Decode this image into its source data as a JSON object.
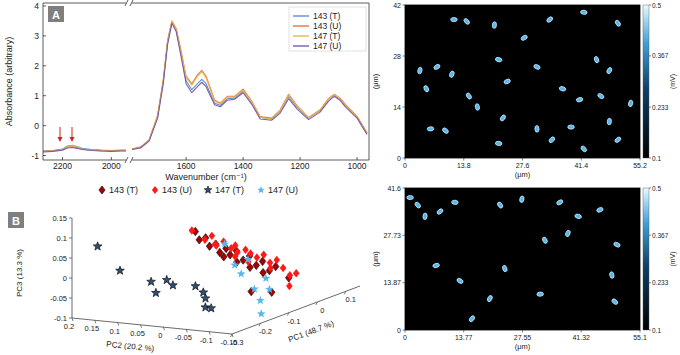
{
  "chart_data": [
    {
      "type": "line",
      "title": "A",
      "ylabel": "Absorbance (arbitrary)",
      "x": [
        2280,
        2240,
        2200,
        2180,
        2160,
        2140,
        2120,
        2080,
        2040,
        2000,
        1960,
        1940
      ],
      "series": [
        {
          "color": "#5b8fd6",
          "values": [
            -0.85,
            -0.83,
            -0.78,
            -0.68,
            -0.66,
            -0.7,
            -0.76,
            -0.8,
            -0.82,
            -0.83,
            -0.82,
            -0.82
          ]
        },
        {
          "color": "#e8743b",
          "values": [
            -0.86,
            -0.84,
            -0.8,
            -0.72,
            -0.7,
            -0.74,
            -0.79,
            -0.82,
            -0.84,
            -0.84,
            -0.83,
            -0.83
          ]
        },
        {
          "color": "#e6b84a",
          "values": [
            -0.87,
            -0.85,
            -0.8,
            -0.7,
            -0.67,
            -0.71,
            -0.78,
            -0.82,
            -0.84,
            -0.85,
            -0.84,
            -0.84
          ]
        },
        {
          "color": "#7b5ea7",
          "values": [
            -0.88,
            -0.86,
            -0.82,
            -0.75,
            -0.73,
            -0.76,
            -0.8,
            -0.83,
            -0.85,
            -0.86,
            -0.85,
            -0.85
          ]
        }
      ],
      "xlim": [
        2280,
        1940
      ],
      "xticks": [
        2200,
        2000
      ],
      "ylim": [
        -1.15,
        4.1
      ],
      "yticks": [
        -1,
        0,
        1,
        2,
        3,
        4
      ]
    },
    {
      "type": "line",
      "xlabel": "Wavenumber (cm⁻¹)",
      "x": [
        1790,
        1760,
        1730,
        1700,
        1680,
        1665,
        1650,
        1635,
        1620,
        1600,
        1580,
        1560,
        1545,
        1530,
        1500,
        1480,
        1455,
        1430,
        1400,
        1370,
        1340,
        1300,
        1270,
        1240,
        1210,
        1170,
        1130,
        1100,
        1080,
        1060,
        1040,
        1000,
        965
      ],
      "series": [
        {
          "name": "143 (T)",
          "color": "#5b8fd6",
          "values": [
            -0.78,
            -0.72,
            -0.5,
            0.3,
            1.5,
            2.8,
            3.45,
            3.2,
            2.5,
            1.5,
            1.2,
            1.4,
            1.55,
            1.4,
            0.75,
            0.68,
            0.9,
            0.92,
            1.15,
            0.78,
            0.28,
            0.22,
            0.48,
            0.98,
            0.62,
            0.25,
            0.5,
            0.88,
            1.02,
            0.9,
            0.68,
            0.3,
            -0.25
          ]
        },
        {
          "name": "143 (U)",
          "color": "#e8743b",
          "values": [
            -0.78,
            -0.72,
            -0.48,
            0.35,
            1.55,
            2.85,
            3.5,
            3.25,
            2.6,
            1.65,
            1.4,
            1.7,
            1.85,
            1.65,
            0.85,
            0.75,
            0.98,
            0.98,
            1.22,
            0.82,
            0.3,
            0.25,
            0.52,
            1.05,
            0.66,
            0.27,
            0.52,
            0.9,
            1.05,
            0.92,
            0.7,
            0.3,
            -0.25
          ]
        },
        {
          "name": "147 (T)",
          "color": "#e6b84a",
          "values": [
            -0.8,
            -0.74,
            -0.5,
            0.32,
            1.5,
            2.8,
            3.48,
            3.22,
            2.55,
            1.6,
            1.35,
            1.65,
            1.8,
            1.6,
            0.82,
            0.72,
            0.95,
            0.95,
            1.18,
            0.8,
            0.28,
            0.22,
            0.5,
            1.02,
            0.64,
            0.26,
            0.5,
            0.9,
            1.04,
            0.9,
            0.68,
            0.28,
            -0.27
          ]
        },
        {
          "name": "147 (U)",
          "color": "#7b5ea7",
          "values": [
            -0.8,
            -0.75,
            -0.52,
            0.25,
            1.42,
            2.72,
            3.42,
            3.15,
            2.42,
            1.4,
            1.1,
            1.3,
            1.45,
            1.3,
            0.7,
            0.63,
            0.85,
            0.88,
            1.1,
            0.72,
            0.22,
            0.18,
            0.42,
            0.9,
            0.55,
            0.2,
            0.45,
            0.82,
            0.98,
            0.85,
            0.62,
            0.25,
            -0.3
          ]
        }
      ],
      "xlim": [
        1790,
        958
      ],
      "xticks": [
        1600,
        1400,
        1200,
        1000
      ],
      "ylim": [
        -1.15,
        4.1
      ],
      "tick_labels": "x",
      "legend": "top-right"
    },
    {
      "type": "scatter3d",
      "title": "B",
      "xlabel": "PC1 (48.7 %)",
      "ylabel": "PC2 (20.2 %)",
      "zlabel": "PC3 (13.3 %)",
      "xlim": [
        -0.3,
        0.15
      ],
      "ylim": [
        -0.15,
        0.2
      ],
      "zlim": [
        -0.1,
        0.15
      ],
      "xticks": [
        -0.3,
        -0.2,
        -0.1,
        0,
        0.1
      ],
      "yticks": [
        -0.15,
        -0.1,
        -0.05,
        0,
        0.05,
        0.1,
        0.15,
        0.2
      ],
      "zticks": [
        -0.1,
        -0.05,
        0,
        0.05,
        0.1,
        0.15
      ],
      "legend": "top",
      "series": [
        {
          "name": "143 (T)",
          "color": "#a80000",
          "marker": "diamond",
          "x": [
            -0.22,
            -0.2,
            -0.19,
            -0.18,
            -0.17,
            -0.16,
            -0.15,
            -0.14,
            -0.13,
            -0.12,
            -0.11,
            -0.1,
            -0.09,
            -0.08,
            -0.07,
            -0.06,
            -0.05,
            -0.04,
            -0.03,
            -0.02,
            -0.08,
            -0.12
          ],
          "y": [
            -0.02,
            -0.03,
            -0.01,
            -0.04,
            -0.02,
            -0.05,
            -0.03,
            -0.06,
            -0.04,
            -0.02,
            -0.07,
            -0.05,
            -0.03,
            -0.08,
            -0.06,
            -0.04,
            -0.09,
            -0.07,
            -0.05,
            -0.1,
            -0.1,
            -0.08
          ],
          "z": [
            0.12,
            0.1,
            0.09,
            0.08,
            0.07,
            0.065,
            0.05,
            0.055,
            0.04,
            0.03,
            0.035,
            0.02,
            0.01,
            0.015,
            0.0,
            -0.01,
            -0.005,
            -0.02,
            -0.03,
            -0.04,
            -0.06,
            -0.05
          ]
        },
        {
          "name": "143 (U)",
          "color": "#ff1a1a",
          "marker": "diamond",
          "x": [
            -0.21,
            -0.2,
            -0.185,
            -0.17,
            -0.16,
            -0.15,
            -0.14,
            -0.13,
            -0.12,
            -0.11,
            -0.1,
            -0.09,
            -0.08,
            -0.07,
            -0.06,
            -0.05,
            -0.04,
            -0.03,
            -0.02,
            -0.01,
            0.0,
            -0.05
          ],
          "y": [
            -0.05,
            0.0,
            -0.06,
            -0.01,
            -0.07,
            -0.02,
            -0.08,
            -0.01,
            -0.05,
            -0.03,
            -0.08,
            -0.06,
            -0.02,
            -0.09,
            -0.07,
            -0.03,
            -0.1,
            -0.08,
            -0.06,
            -0.11,
            -0.09,
            -0.12
          ],
          "z": [
            0.11,
            0.115,
            0.09,
            0.085,
            0.075,
            0.07,
            0.06,
            0.06,
            0.045,
            0.05,
            0.03,
            0.035,
            0.02,
            0.01,
            0.025,
            0.0,
            -0.01,
            0.005,
            -0.02,
            -0.03,
            -0.04,
            -0.05
          ]
        },
        {
          "name": "147 (T)",
          "color": "#2f4f75",
          "marker": "star",
          "x": [
            -0.21,
            -0.21,
            -0.21,
            -0.2,
            -0.22,
            -0.21,
            -0.2,
            -0.21,
            -0.22,
            -0.19,
            -0.23
          ],
          "y": [
            0.2,
            0.151,
            0.083,
            0.055,
            0.029,
            -0.014,
            -0.025,
            -0.036,
            -0.042,
            -0.036,
            0.06
          ],
          "z": [
            0.055,
            0.0,
            -0.02,
            -0.015,
            -0.02,
            -0.02,
            -0.037,
            -0.048,
            -0.067,
            -0.078,
            -0.04
          ]
        },
        {
          "name": "147 (U)",
          "color": "#5ab8e8",
          "marker": "star",
          "x": [
            -0.075,
            -0.075,
            -0.07,
            -0.08,
            -0.075,
            -0.07,
            -0.075,
            -0.165,
            -0.12
          ],
          "y": [
            0.006,
            -0.016,
            -0.027,
            -0.048,
            -0.059,
            -0.081,
            -0.092,
            -0.13,
            -0.1
          ],
          "z": [
            0.047,
            -0.003,
            -0.025,
            0.016,
            -0.058,
            -0.03,
            -0.055,
            -0.088,
            -0.07
          ]
        }
      ]
    },
    {
      "type": "scatter",
      "marker": "ellipse",
      "color": "#58b6ea",
      "xlabel": "(μm)",
      "ylabel": "(μm)",
      "x": [
        11.5,
        14.5,
        21,
        34,
        42,
        50,
        3.5,
        7.5,
        22,
        5,
        11,
        24,
        31,
        45,
        48,
        41,
        46,
        17,
        23,
        6,
        9.5,
        31,
        34.5,
        39,
        42,
        48,
        50,
        22,
        15,
        53,
        28,
        37
      ],
      "values": [
        38,
        37.5,
        36.5,
        38,
        40,
        37,
        24,
        25,
        27,
        19,
        23,
        21,
        25,
        27,
        24,
        16,
        17,
        14,
        11,
        8,
        7.5,
        8,
        5,
        8.5,
        2.5,
        10,
        5,
        4,
        17,
        15,
        33,
        19
      ],
      "xlim": [
        0,
        55.2
      ],
      "xticks": [
        0,
        13.8,
        27.6,
        41.4,
        55.2
      ],
      "ylim": [
        0,
        42
      ],
      "yticks": [
        0,
        14,
        28,
        42
      ],
      "colorbar": {
        "range": [
          0.1,
          0.5
        ],
        "ticks": [
          0.1,
          0.233,
          0.367,
          0.5
        ],
        "label": "(mV)"
      }
    },
    {
      "type": "scatter",
      "marker": "ellipse",
      "color": "#58b6ea",
      "xlabel": "(μm)",
      "ylabel": "(μm)",
      "x": [
        1.2,
        3.0,
        4.7,
        8.2,
        11.7,
        22.3,
        27.4,
        36.3,
        40.6,
        32.8,
        38.2,
        45.7,
        49.7,
        23.4,
        19.9,
        7.3,
        12.9,
        48.5,
        15.7,
        31.7,
        49.2
      ],
      "values": [
        38.8,
        36.6,
        33.3,
        34.7,
        37.4,
        36.6,
        38.3,
        37.4,
        33.3,
        26.3,
        28.3,
        35.2,
        25.0,
        18.0,
        9.2,
        18.9,
        14.4,
        16.1,
        3.3,
        10.5,
        8.3
      ],
      "xlim": [
        0,
        55.1
      ],
      "xticks": [
        0,
        13.77,
        27.55,
        41.32,
        55.1
      ],
      "ylim": [
        0,
        41.6
      ],
      "yticks": [
        0,
        13.87,
        27.73,
        41.6
      ],
      "colorbar": {
        "range": [
          0.1,
          0.5
        ],
        "ticks": [
          0.1,
          0.233,
          0.367,
          0.5
        ],
        "label": "(mV)"
      }
    }
  ]
}
